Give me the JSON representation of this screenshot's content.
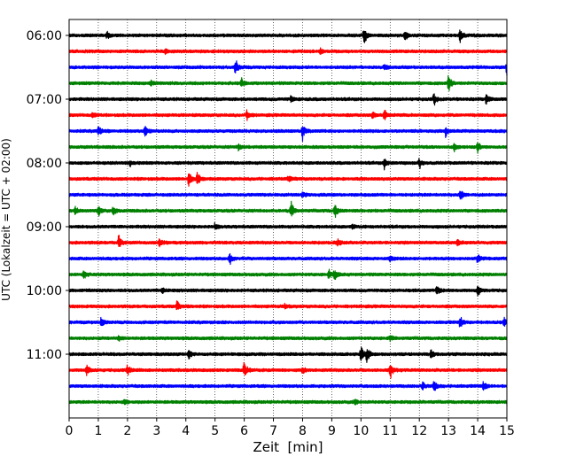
{
  "chart_data": {
    "type": "line",
    "title": "",
    "xlabel": "Zeit  [min]",
    "ylabel": "UTC (Lokalzeit = UTC + 02:00)",
    "xlim": [
      0,
      15
    ],
    "x_ticks": [
      0,
      1,
      2,
      3,
      4,
      5,
      6,
      7,
      8,
      9,
      10,
      11,
      12,
      13,
      14,
      15
    ],
    "x_tick_labels": [
      "0",
      "1",
      "2",
      "3",
      "4",
      "5",
      "6",
      "7",
      "8",
      "9",
      "10",
      "11",
      "12",
      "13",
      "14",
      "15"
    ],
    "y_tick_labels": [
      "06:00",
      "07:00",
      "08:00",
      "09:00",
      "10:00",
      "11:00"
    ],
    "rows_per_hour": 4,
    "minutes_per_row": 15,
    "start_time_utc": "06:00",
    "grid": "vertical dotted, every minute",
    "row_colors": [
      "#000000",
      "#ff0000",
      "#0000ff",
      "#008000"
    ],
    "rows": [
      {
        "time": "06:00",
        "color": "#000000",
        "events": [
          {
            "x": 10.1,
            "amp": 1.0
          },
          {
            "x": 11.5,
            "amp": 0.6
          },
          {
            "x": 13.4,
            "amp": 0.75
          },
          {
            "x": 1.3,
            "amp": 0.3
          }
        ]
      },
      {
        "time": "06:15",
        "color": "#ff0000",
        "events": [
          {
            "x": 3.3,
            "amp": 0.3
          },
          {
            "x": 8.6,
            "amp": 0.3
          }
        ]
      },
      {
        "time": "06:30",
        "color": "#0000ff",
        "events": [
          {
            "x": 5.7,
            "amp": 0.85
          },
          {
            "x": 15.0,
            "amp": 0.75
          },
          {
            "x": 10.8,
            "amp": 0.35
          }
        ]
      },
      {
        "time": "06:45",
        "color": "#008000",
        "events": [
          {
            "x": 5.9,
            "amp": 0.5
          },
          {
            "x": 13.0,
            "amp": 0.9
          },
          {
            "x": 2.8,
            "amp": 0.3
          }
        ]
      },
      {
        "time": "07:00",
        "color": "#000000",
        "events": [
          {
            "x": 12.5,
            "amp": 0.6
          },
          {
            "x": 14.3,
            "amp": 0.6
          },
          {
            "x": 7.6,
            "amp": 0.3
          }
        ]
      },
      {
        "time": "07:15",
        "color": "#ff0000",
        "events": [
          {
            "x": 6.1,
            "amp": 0.5
          },
          {
            "x": 10.4,
            "amp": 0.4
          },
          {
            "x": 10.8,
            "amp": 0.6
          },
          {
            "x": 0.8,
            "amp": 0.3
          }
        ]
      },
      {
        "time": "07:30",
        "color": "#0000ff",
        "events": [
          {
            "x": 8.0,
            "amp": 1.0
          },
          {
            "x": 2.6,
            "amp": 0.8
          },
          {
            "x": 1.0,
            "amp": 0.6
          },
          {
            "x": 12.9,
            "amp": 0.5
          }
        ]
      },
      {
        "time": "07:45",
        "color": "#008000",
        "events": [
          {
            "x": 14.0,
            "amp": 0.5
          },
          {
            "x": 13.2,
            "amp": 0.4
          },
          {
            "x": 5.8,
            "amp": 0.35
          }
        ]
      },
      {
        "time": "08:00",
        "color": "#000000",
        "events": [
          {
            "x": 10.8,
            "amp": 0.6
          },
          {
            "x": 12.0,
            "amp": 0.55
          },
          {
            "x": 2.1,
            "amp": 0.3
          }
        ]
      },
      {
        "time": "08:15",
        "color": "#ff0000",
        "events": [
          {
            "x": 4.1,
            "amp": 0.95
          },
          {
            "x": 4.4,
            "amp": 0.8
          },
          {
            "x": 7.5,
            "amp": 0.3
          }
        ]
      },
      {
        "time": "08:30",
        "color": "#0000ff",
        "events": [
          {
            "x": 13.4,
            "amp": 0.6
          },
          {
            "x": 8.0,
            "amp": 0.3
          }
        ]
      },
      {
        "time": "08:45",
        "color": "#008000",
        "events": [
          {
            "x": 7.6,
            "amp": 1.1
          },
          {
            "x": 9.1,
            "amp": 0.7
          },
          {
            "x": 1.0,
            "amp": 0.5
          },
          {
            "x": 1.5,
            "amp": 0.45
          },
          {
            "x": 0.2,
            "amp": 0.35
          }
        ]
      },
      {
        "time": "09:00",
        "color": "#000000",
        "events": [
          {
            "x": 5.0,
            "amp": 0.3
          },
          {
            "x": 9.7,
            "amp": 0.3
          }
        ]
      },
      {
        "time": "09:15",
        "color": "#ff0000",
        "events": [
          {
            "x": 1.7,
            "amp": 0.7
          },
          {
            "x": 3.1,
            "amp": 0.5
          },
          {
            "x": 13.3,
            "amp": 0.5
          },
          {
            "x": 9.2,
            "amp": 0.35
          }
        ]
      },
      {
        "time": "09:30",
        "color": "#0000ff",
        "events": [
          {
            "x": 5.5,
            "amp": 0.6
          },
          {
            "x": 14.0,
            "amp": 0.6
          },
          {
            "x": 11.0,
            "amp": 0.3
          }
        ]
      },
      {
        "time": "09:45",
        "color": "#008000",
        "events": [
          {
            "x": 0.5,
            "amp": 0.55
          },
          {
            "x": 8.9,
            "amp": 0.45
          },
          {
            "x": 9.1,
            "amp": 0.6
          }
        ]
      },
      {
        "time": "10:00",
        "color": "#000000",
        "events": [
          {
            "x": 12.6,
            "amp": 0.5
          },
          {
            "x": 14.0,
            "amp": 0.55
          },
          {
            "x": 3.2,
            "amp": 0.25
          }
        ]
      },
      {
        "time": "10:15",
        "color": "#ff0000",
        "events": [
          {
            "x": 3.7,
            "amp": 0.6
          },
          {
            "x": 7.4,
            "amp": 0.25
          }
        ]
      },
      {
        "time": "10:30",
        "color": "#0000ff",
        "events": [
          {
            "x": 1.1,
            "amp": 0.5
          },
          {
            "x": 13.4,
            "amp": 0.6
          },
          {
            "x": 14.9,
            "amp": 0.55
          }
        ]
      },
      {
        "time": "10:45",
        "color": "#008000",
        "events": [
          {
            "x": 11.0,
            "amp": 0.3
          },
          {
            "x": 1.7,
            "amp": 0.25
          }
        ]
      },
      {
        "time": "11:00",
        "color": "#000000",
        "events": [
          {
            "x": 10.0,
            "amp": 1.0
          },
          {
            "x": 10.2,
            "amp": 0.8
          },
          {
            "x": 4.1,
            "amp": 0.55
          },
          {
            "x": 12.4,
            "amp": 0.5
          }
        ]
      },
      {
        "time": "11:15",
        "color": "#ff0000",
        "events": [
          {
            "x": 6.0,
            "amp": 1.0
          },
          {
            "x": 11.0,
            "amp": 0.9
          },
          {
            "x": 2.0,
            "amp": 0.6
          },
          {
            "x": 0.6,
            "amp": 0.55
          },
          {
            "x": 8.0,
            "amp": 0.3
          }
        ]
      },
      {
        "time": "11:30",
        "color": "#0000ff",
        "events": [
          {
            "x": 12.5,
            "amp": 0.55
          },
          {
            "x": 14.2,
            "amp": 0.6
          },
          {
            "x": 12.1,
            "amp": 0.4
          }
        ]
      },
      {
        "time": "11:45",
        "color": "#008000",
        "events": [
          {
            "x": 9.8,
            "amp": 0.3
          },
          {
            "x": 1.9,
            "amp": 0.25
          }
        ]
      }
    ]
  }
}
